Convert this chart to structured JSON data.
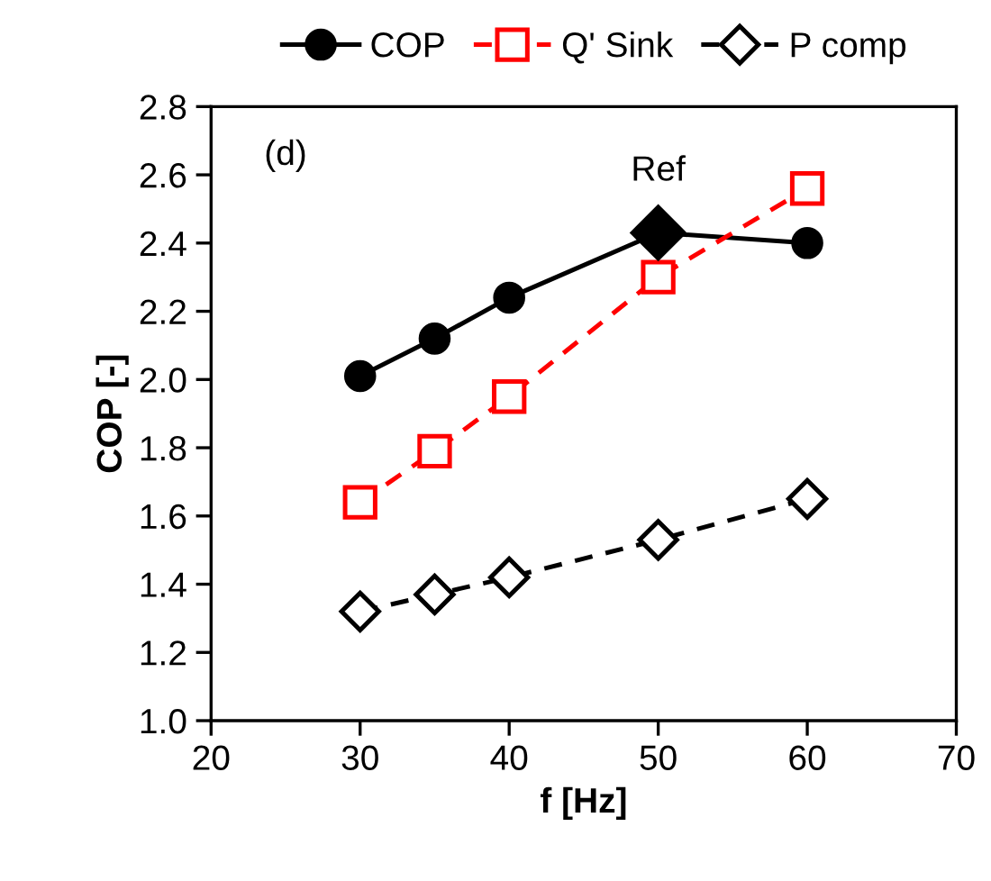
{
  "chart_data": {
    "type": "line",
    "xlabel": "f [Hz]",
    "ylabel": "COP [-]",
    "x": [
      30,
      35,
      40,
      50,
      60
    ],
    "series": [
      {
        "name": "COP",
        "color": "#000000",
        "values": [
          2.01,
          2.12,
          2.24,
          2.43,
          2.4
        ],
        "marker": "circle",
        "line_style": "solid"
      },
      {
        "name": "Q' Sink",
        "color": "#ff0000",
        "values": [
          1.64,
          1.79,
          1.95,
          2.3,
          2.56
        ],
        "marker": "square",
        "line_style": "dashed"
      },
      {
        "name": "P comp",
        "color": "#000000",
        "values": [
          1.32,
          1.37,
          1.42,
          1.53,
          1.65
        ],
        "marker": "diamond",
        "line_style": "dashed"
      },
      {
        "type": "scatter",
        "color": "#000000",
        "x": [
          50
        ],
        "values": [
          2.43
        ],
        "marker": "diamond"
      }
    ],
    "xlim": [
      20,
      70
    ],
    "xticks": [
      20,
      30,
      40,
      50,
      60,
      70
    ],
    "ylim": [
      1.0,
      2.8
    ],
    "yticks": [
      {
        "value": 1.0,
        "label": "1.0"
      },
      1.2,
      1.4,
      1.6,
      1.8,
      {
        "value": 2.0,
        "label": "2.0"
      },
      2.2,
      2.4,
      2.6,
      {
        "value": 2.8,
        "label": "2.8"
      }
    ],
    "annotations": [
      "(d)",
      {
        "text": "Ref",
        "x": 50,
        "y": 2.43
      }
    ],
    "legend": "top",
    "grid": false
  }
}
